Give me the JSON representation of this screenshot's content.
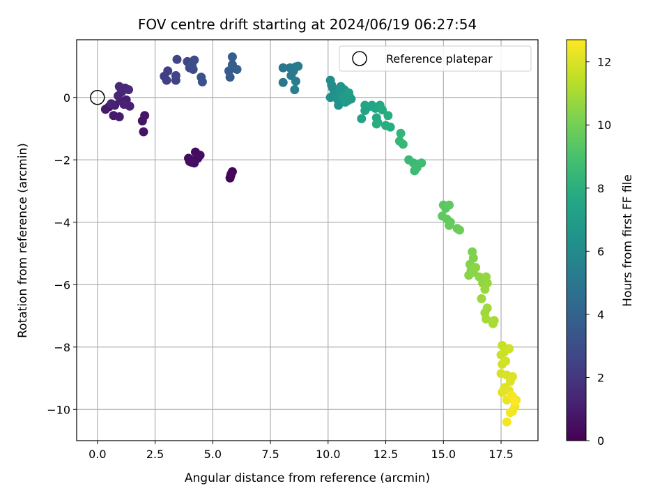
{
  "chart_data": {
    "type": "scatter",
    "title": "FOV centre drift starting at 2024/06/19 06:27:54",
    "xlabel": "Angular distance from reference (arcmin)",
    "ylabel": "Rotation from reference (arcmin)",
    "xlim": [
      -0.9,
      19.1
    ],
    "ylim": [
      -11.0,
      1.85
    ],
    "xticks": [
      0.0,
      2.5,
      5.0,
      7.5,
      10.0,
      12.5,
      15.0,
      17.5
    ],
    "xtick_labels": [
      "0.0",
      "2.5",
      "5.0",
      "7.5",
      "10.0",
      "12.5",
      "15.0",
      "17.5"
    ],
    "yticks": [
      -10,
      -8,
      -6,
      -4,
      -2,
      0
    ],
    "ytick_labels": [
      "−10",
      "−8",
      "−6",
      "−4",
      "−2",
      "0"
    ],
    "grid": true,
    "legend": {
      "placement": "top-right",
      "entries": [
        {
          "label": "Reference platepar",
          "marker": "open-circle",
          "x": 0.0,
          "y": 0.0
        }
      ]
    },
    "colorbar": {
      "label": "Hours from first FF file",
      "colormap": "viridis",
      "range": [
        0,
        12.7
      ],
      "ticks": [
        0,
        2,
        4,
        6,
        8,
        10,
        12
      ],
      "tick_labels": [
        "0",
        "2",
        "4",
        "6",
        "8",
        "10",
        "12"
      ]
    },
    "series": [
      {
        "points": [
          [
            5.75,
            -2.58,
            0.1
          ],
          [
            5.78,
            -2.5,
            0.12
          ],
          [
            5.85,
            -2.38,
            0.15
          ],
          [
            5.8,
            -2.45,
            0.18
          ],
          [
            4.0,
            -2.05,
            0.3
          ],
          [
            3.95,
            -1.95,
            0.32
          ],
          [
            4.1,
            -2.08,
            0.35
          ],
          [
            4.25,
            -1.75,
            0.38
          ],
          [
            4.35,
            -1.95,
            0.4
          ],
          [
            4.2,
            -2.1,
            0.42
          ],
          [
            4.45,
            -1.85,
            0.45
          ],
          [
            4.05,
            -2.0,
            0.48
          ],
          [
            2.0,
            -1.1,
            0.6
          ],
          [
            1.95,
            -0.75,
            0.65
          ],
          [
            2.05,
            -0.58,
            0.7
          ],
          [
            0.35,
            -0.38,
            0.8
          ],
          [
            0.5,
            -0.3,
            0.85
          ],
          [
            0.7,
            -0.58,
            0.9
          ],
          [
            0.95,
            -0.62,
            0.95
          ],
          [
            0.75,
            -0.25,
            1.0
          ],
          [
            1.0,
            -0.1,
            1.05
          ],
          [
            1.25,
            -0.08,
            1.1
          ],
          [
            1.4,
            -0.28,
            1.15
          ],
          [
            1.15,
            -0.22,
            1.2
          ],
          [
            0.6,
            -0.2,
            1.25
          ],
          [
            0.9,
            0.05,
            1.3
          ],
          [
            1.05,
            0.18,
            1.35
          ],
          [
            1.2,
            0.3,
            1.4
          ],
          [
            0.95,
            0.35,
            1.45
          ],
          [
            1.35,
            0.25,
            1.5
          ],
          [
            2.9,
            0.68,
            2.3
          ],
          [
            3.0,
            0.55,
            2.35
          ],
          [
            3.05,
            0.85,
            2.4
          ],
          [
            3.4,
            0.55,
            2.5
          ],
          [
            3.4,
            0.7,
            2.55
          ],
          [
            3.45,
            1.22,
            2.6
          ],
          [
            3.9,
            1.15,
            2.7
          ],
          [
            4.0,
            0.95,
            2.8
          ],
          [
            4.15,
            0.9,
            2.85
          ],
          [
            4.2,
            1.2,
            2.9
          ],
          [
            4.1,
            1.05,
            2.95
          ],
          [
            4.5,
            0.65,
            3.1
          ],
          [
            4.55,
            0.5,
            3.15
          ],
          [
            5.7,
            0.85,
            3.6
          ],
          [
            5.75,
            0.65,
            3.65
          ],
          [
            5.85,
            1.3,
            3.7
          ],
          [
            5.85,
            1.05,
            3.75
          ],
          [
            6.05,
            0.9,
            3.8
          ],
          [
            8.05,
            0.95,
            5.0
          ],
          [
            8.05,
            0.48,
            5.05
          ],
          [
            8.35,
            0.95,
            5.1
          ],
          [
            8.4,
            0.7,
            5.15
          ],
          [
            8.5,
            0.85,
            5.2
          ],
          [
            8.6,
            0.98,
            5.25
          ],
          [
            8.7,
            1.0,
            5.3
          ],
          [
            8.6,
            0.52,
            5.35
          ],
          [
            8.55,
            0.25,
            5.4
          ],
          [
            10.1,
            0.55,
            6.1
          ],
          [
            10.15,
            0.4,
            6.15
          ],
          [
            10.2,
            0.3,
            6.2
          ],
          [
            10.25,
            0.1,
            6.25
          ],
          [
            10.1,
            0.0,
            6.3
          ],
          [
            10.35,
            0.05,
            6.35
          ],
          [
            10.4,
            -0.05,
            6.4
          ],
          [
            10.45,
            -0.25,
            6.45
          ],
          [
            10.5,
            0.2,
            6.5
          ],
          [
            10.55,
            0.35,
            6.55
          ],
          [
            10.6,
            0.12,
            6.6
          ],
          [
            10.7,
            0.25,
            6.65
          ],
          [
            10.8,
            0.1,
            6.7
          ],
          [
            10.85,
            -0.1,
            6.75
          ],
          [
            10.95,
            0.0,
            6.8
          ],
          [
            11.0,
            -0.05,
            6.85
          ],
          [
            10.75,
            -0.15,
            6.9
          ],
          [
            10.65,
            0.0,
            6.95
          ],
          [
            10.9,
            0.15,
            7.0
          ],
          [
            11.45,
            -0.68,
            7.3
          ],
          [
            11.6,
            -0.42,
            7.35
          ],
          [
            11.6,
            -0.25,
            7.4
          ],
          [
            11.75,
            -0.3,
            7.45
          ],
          [
            11.9,
            -0.25,
            7.5
          ],
          [
            12.05,
            -0.35,
            7.55
          ],
          [
            12.1,
            -0.65,
            7.6
          ],
          [
            12.15,
            -0.8,
            7.65
          ],
          [
            12.25,
            -0.25,
            7.7
          ],
          [
            12.35,
            -0.4,
            7.75
          ],
          [
            12.5,
            -0.9,
            7.8
          ],
          [
            12.6,
            -0.58,
            7.85
          ],
          [
            12.7,
            -0.95,
            7.9
          ],
          [
            12.1,
            -0.85,
            7.95
          ],
          [
            13.15,
            -1.15,
            8.3
          ],
          [
            13.1,
            -1.4,
            8.35
          ],
          [
            13.25,
            -1.5,
            8.4
          ],
          [
            13.5,
            -2.0,
            8.5
          ],
          [
            13.7,
            -2.1,
            8.55
          ],
          [
            13.75,
            -2.35,
            8.6
          ],
          [
            13.9,
            -2.15,
            8.65
          ],
          [
            14.05,
            -2.1,
            8.7
          ],
          [
            13.85,
            -2.25,
            8.75
          ],
          [
            15.0,
            -3.45,
            9.4
          ],
          [
            15.1,
            -3.55,
            9.45
          ],
          [
            15.25,
            -3.45,
            9.5
          ],
          [
            14.95,
            -3.8,
            9.55
          ],
          [
            15.15,
            -3.9,
            9.6
          ],
          [
            15.3,
            -4.0,
            9.65
          ],
          [
            15.25,
            -4.1,
            9.7
          ],
          [
            15.6,
            -4.2,
            9.75
          ],
          [
            15.7,
            -4.25,
            9.8
          ],
          [
            16.25,
            -4.95,
            10.2
          ],
          [
            16.3,
            -5.15,
            10.25
          ],
          [
            16.15,
            -5.35,
            10.3
          ],
          [
            16.2,
            -5.55,
            10.35
          ],
          [
            16.1,
            -5.7,
            10.4
          ],
          [
            16.3,
            -5.6,
            10.45
          ],
          [
            16.4,
            -5.45,
            10.5
          ],
          [
            16.55,
            -5.75,
            10.55
          ],
          [
            16.7,
            -5.95,
            10.6
          ],
          [
            16.85,
            -5.75,
            10.65
          ],
          [
            16.9,
            -5.95,
            10.7
          ],
          [
            16.8,
            -6.15,
            10.75
          ],
          [
            16.65,
            -6.45,
            10.8
          ],
          [
            16.8,
            -6.9,
            10.85
          ],
          [
            16.9,
            -6.75,
            10.9
          ],
          [
            16.85,
            -7.1,
            10.95
          ],
          [
            17.2,
            -7.15,
            11.0
          ],
          [
            17.15,
            -7.25,
            11.05
          ],
          [
            17.55,
            -7.95,
            11.6
          ],
          [
            17.5,
            -8.25,
            11.65
          ],
          [
            17.65,
            -8.15,
            11.7
          ],
          [
            17.85,
            -8.05,
            11.75
          ],
          [
            17.55,
            -8.55,
            11.8
          ],
          [
            17.7,
            -8.45,
            11.85
          ],
          [
            17.5,
            -8.85,
            11.9
          ],
          [
            17.75,
            -8.9,
            11.95
          ],
          [
            17.9,
            -9.1,
            12.0
          ],
          [
            18.0,
            -8.95,
            12.05
          ],
          [
            17.65,
            -9.3,
            12.1
          ],
          [
            17.55,
            -9.45,
            12.15
          ],
          [
            17.85,
            -9.4,
            12.2
          ],
          [
            18.0,
            -9.6,
            12.25
          ],
          [
            17.75,
            -9.7,
            12.3
          ],
          [
            18.15,
            -9.7,
            12.35
          ],
          [
            18.1,
            -9.9,
            12.4
          ],
          [
            18.0,
            -10.05,
            12.45
          ],
          [
            17.9,
            -10.1,
            12.5
          ],
          [
            17.75,
            -10.4,
            12.55
          ],
          [
            17.95,
            -9.55,
            12.6
          ],
          [
            18.1,
            -9.75,
            12.65
          ]
        ]
      }
    ]
  }
}
